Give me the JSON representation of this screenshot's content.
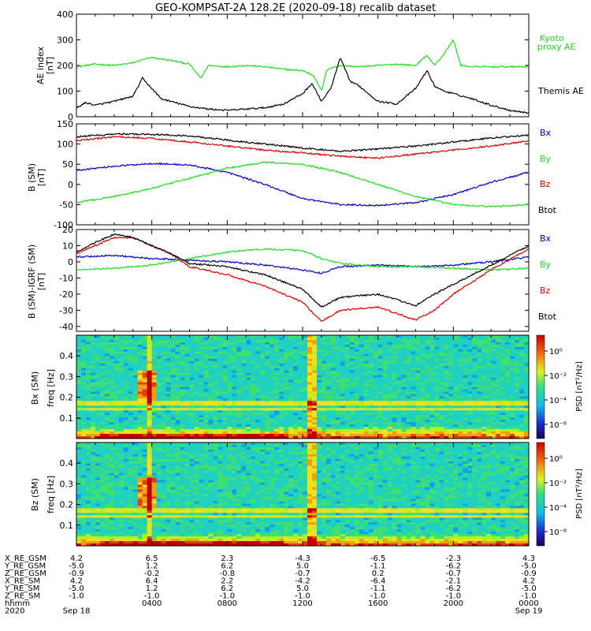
{
  "title": "GEO-KOMPSAT-2A 128.2E (2020-09-18) recalib dataset",
  "colors": {
    "black": "#000000",
    "green": "#22dd22",
    "blue": "#0000cc",
    "red": "#dd0000"
  },
  "panels": [
    {
      "id": "ae",
      "ylabel": [
        "AE index",
        "[nT]"
      ],
      "ylim": [
        0,
        400
      ],
      "yticks": [
        0,
        100,
        200,
        300,
        400
      ],
      "legend": [
        {
          "text": "Kyoto",
          "color": "#22dd22"
        },
        {
          "text": "proxy AE",
          "color": "#22dd22"
        },
        {
          "text": "Themis AE",
          "color": "#000000"
        }
      ]
    },
    {
      "id": "bsm",
      "ylabel": [
        "B (SM)",
        "[nT]"
      ],
      "ylim": [
        -100,
        150
      ],
      "yticks": [
        -100,
        -50,
        0,
        50,
        100,
        150
      ],
      "legend": [
        {
          "text": "Bx",
          "color": "#0000cc"
        },
        {
          "text": "By",
          "color": "#22dd22"
        },
        {
          "text": "Bz",
          "color": "#dd0000"
        },
        {
          "text": "Btot",
          "color": "#000000"
        }
      ]
    },
    {
      "id": "bigrf",
      "ylabel": [
        "B (SM)-IGRF (SM)",
        "[nT]"
      ],
      "ylim": [
        -43,
        20
      ],
      "yticks": [
        -40,
        -30,
        -20,
        -10,
        0,
        10,
        20
      ],
      "legend": [
        {
          "text": "Bx",
          "color": "#0000cc"
        },
        {
          "text": "By",
          "color": "#22dd22"
        },
        {
          "text": "Bz",
          "color": "#dd0000"
        },
        {
          "text": "Btot",
          "color": "#000000"
        }
      ]
    },
    {
      "id": "specbx",
      "ylabel": [
        "Bx (SM)",
        "freq [Hz]"
      ],
      "ylim": [
        0,
        0.5
      ],
      "yticks": [
        "0.1",
        "0.2",
        "0.3",
        "0.4"
      ],
      "colorbar": {
        "label": "PSD [nT²/Hz]",
        "ticks": [
          "10⁰",
          "10⁻²",
          "10⁻⁴",
          "10⁻⁶"
        ]
      }
    },
    {
      "id": "specbz",
      "ylabel": [
        "Bz (SM)",
        "freq [Hz]"
      ],
      "ylim": [
        0,
        0.5
      ],
      "yticks": [
        "0.1",
        "0.2",
        "0.3",
        "0.4"
      ],
      "colorbar": {
        "label": "PSD [nT²/Hz]",
        "ticks": [
          "10⁰",
          "10⁻²",
          "10⁻⁴",
          "10⁻⁶"
        ]
      }
    }
  ],
  "ephemeris": {
    "row_labels": [
      "X_RE_GSM",
      "Y_RE_GSM",
      "Z_RE_GSM",
      "X_RE_SM",
      "Y_RE_SM",
      "Z_RE_SM",
      "hhmm",
      "2020"
    ],
    "columns": [
      {
        "x_hours": 0,
        "values": [
          "4.2",
          "-5.0",
          "-0.9",
          "4.2",
          "-5.0",
          "-1.0",
          "",
          "Sep 18"
        ]
      },
      {
        "x_hours": 4,
        "values": [
          "6.5",
          "1.2",
          "-0.2",
          "6.4",
          "1.2",
          "-1.0",
          "0400",
          ""
        ]
      },
      {
        "x_hours": 8,
        "values": [
          "2.3",
          "6.2",
          "-0.8",
          "2.2",
          "6.2",
          "-1.0",
          "0800",
          ""
        ]
      },
      {
        "x_hours": 12,
        "values": [
          "-4.3",
          "5.0",
          "-0.7",
          "-4.2",
          "5.0",
          "-1.0",
          "1200",
          ""
        ]
      },
      {
        "x_hours": 16,
        "values": [
          "-6.5",
          "-1.1",
          "0.2",
          "-6.4",
          "-1.1",
          "-1.0",
          "1600",
          ""
        ]
      },
      {
        "x_hours": 20,
        "values": [
          "-2.3",
          "-6.2",
          "-0.7",
          "-2.1",
          "-6.2",
          "-1.0",
          "2000",
          ""
        ]
      },
      {
        "x_hours": 24,
        "values": [
          "4.3",
          "-5.0",
          "-0.9",
          "4.2",
          "-5.0",
          "-1.0",
          "0000",
          "Sep 19"
        ]
      }
    ]
  },
  "chart_data": [
    {
      "type": "line",
      "x_unit": "hours UT, 2020-09-18",
      "xlim": [
        0,
        24
      ],
      "ylim": [
        0,
        400
      ],
      "series": [
        {
          "name": "Kyoto proxy AE",
          "color": "#22dd22",
          "x": [
            0,
            1,
            2,
            3,
            3.6,
            4,
            5,
            6,
            6.6,
            7,
            8,
            9,
            10,
            11,
            12,
            12.6,
            13,
            13.3,
            14,
            15,
            16,
            17,
            18,
            18.6,
            19,
            19.5,
            20,
            20.4,
            21,
            22,
            23,
            24
          ],
          "y": [
            195,
            205,
            200,
            210,
            225,
            230,
            220,
            205,
            150,
            200,
            195,
            200,
            195,
            185,
            180,
            160,
            100,
            185,
            200,
            195,
            200,
            205,
            200,
            240,
            200,
            245,
            300,
            200,
            195,
            195,
            195,
            195
          ]
        },
        {
          "name": "Themis AE",
          "color": "#000000",
          "x": [
            0,
            0.5,
            1,
            2,
            3,
            3.5,
            4,
            4.5,
            5,
            6,
            7,
            8,
            9,
            10,
            11,
            12,
            12.5,
            13,
            13.5,
            14,
            14.5,
            15,
            16,
            17,
            17.5,
            18,
            18.6,
            19,
            19.5,
            20,
            21,
            22,
            23,
            24
          ],
          "y": [
            35,
            55,
            45,
            60,
            80,
            150,
            110,
            70,
            60,
            40,
            30,
            25,
            30,
            35,
            50,
            90,
            130,
            60,
            110,
            230,
            140,
            120,
            60,
            50,
            80,
            110,
            180,
            120,
            100,
            90,
            70,
            45,
            25,
            15
          ]
        }
      ]
    },
    {
      "type": "line",
      "x_unit": "hours UT, 2020-09-18",
      "xlim": [
        0,
        24
      ],
      "ylim": [
        -100,
        150
      ],
      "series": [
        {
          "name": "Bx",
          "color": "#0000cc",
          "x": [
            0,
            2,
            4,
            6,
            8,
            10,
            12,
            14,
            16,
            18,
            20,
            22,
            24
          ],
          "y": [
            35,
            45,
            52,
            48,
            30,
            0,
            -35,
            -50,
            -52,
            -45,
            -25,
            5,
            30
          ]
        },
        {
          "name": "By",
          "color": "#22dd22",
          "x": [
            0,
            2,
            4,
            6,
            8,
            10,
            12,
            14,
            16,
            18,
            20,
            22,
            24
          ],
          "y": [
            -45,
            -30,
            -10,
            15,
            40,
            55,
            50,
            30,
            0,
            -30,
            -50,
            -55,
            -50
          ]
        },
        {
          "name": "Bz",
          "color": "#dd0000",
          "x": [
            0,
            2,
            4,
            6,
            8,
            10,
            12,
            14,
            16,
            18,
            20,
            22,
            24
          ],
          "y": [
            108,
            118,
            114,
            105,
            95,
            85,
            78,
            70,
            65,
            75,
            85,
            95,
            108
          ]
        },
        {
          "name": "Btot",
          "color": "#000000",
          "x": [
            0,
            2,
            4,
            6,
            8,
            10,
            12,
            14,
            16,
            18,
            20,
            22,
            24
          ],
          "y": [
            118,
            125,
            124,
            120,
            110,
            100,
            90,
            82,
            88,
            95,
            105,
            115,
            122
          ]
        }
      ]
    },
    {
      "type": "line",
      "x_unit": "hours UT, 2020-09-18",
      "xlim": [
        0,
        24
      ],
      "ylim": [
        -43,
        20
      ],
      "series": [
        {
          "name": "Bx",
          "color": "#0000cc",
          "x": [
            0,
            2,
            4,
            6,
            8,
            10,
            12,
            13,
            14,
            16,
            18,
            20,
            22,
            24
          ],
          "y": [
            3,
            4,
            2,
            1,
            0,
            -2,
            -5,
            -7,
            -3,
            -2,
            -3,
            -2,
            0,
            3
          ]
        },
        {
          "name": "By",
          "color": "#22dd22",
          "x": [
            0,
            2,
            4,
            6,
            8,
            10,
            12,
            13,
            14,
            16,
            18,
            20,
            22,
            24
          ],
          "y": [
            -5,
            -4,
            -2,
            2,
            6,
            8,
            7,
            2,
            -1,
            -3,
            -3,
            -4,
            -5,
            -4
          ]
        },
        {
          "name": "Bz",
          "color": "#dd0000",
          "x": [
            0,
            1,
            2,
            3,
            4,
            5,
            6,
            8,
            10,
            12,
            13,
            14,
            16,
            18,
            19,
            20,
            22,
            24
          ],
          "y": [
            5,
            10,
            15,
            15,
            10,
            5,
            -3,
            -8,
            -15,
            -25,
            -37,
            -30,
            -28,
            -36,
            -30,
            -20,
            -5,
            8
          ]
        },
        {
          "name": "Btot",
          "color": "#000000",
          "x": [
            0,
            1,
            2,
            3,
            4,
            5,
            6,
            8,
            10,
            12,
            13,
            14,
            16,
            18,
            19,
            20,
            22,
            24
          ],
          "y": [
            6,
            12,
            17,
            15,
            10,
            5,
            -1,
            -3,
            -8,
            -17,
            -28,
            -22,
            -20,
            -27,
            -20,
            -14,
            -2,
            10
          ]
        }
      ]
    },
    {
      "type": "heatmap",
      "name": "Bx (SM) spectrogram",
      "x_unit": "hours UT",
      "xlim": [
        0,
        24
      ],
      "y_unit": "Hz",
      "ylim": [
        0,
        0.5
      ],
      "colorbar_scale": "log",
      "colorbar_range": [
        "10⁻⁶",
        "10⁰"
      ]
    },
    {
      "type": "heatmap",
      "name": "Bz (SM) spectrogram",
      "x_unit": "hours UT",
      "xlim": [
        0,
        24
      ],
      "y_unit": "Hz",
      "ylim": [
        0,
        0.5
      ],
      "colorbar_scale": "log",
      "colorbar_range": [
        "10⁻⁶",
        "10⁰"
      ]
    }
  ]
}
